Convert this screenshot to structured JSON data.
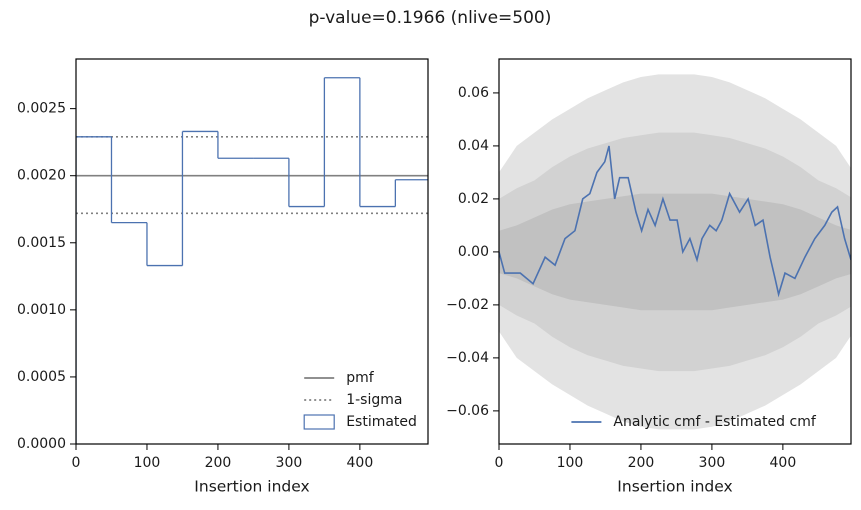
{
  "suptitle": "p-value=0.1966 (nlive=500)",
  "chart_data": [
    {
      "type": "histogram",
      "xlabel": "Insertion index",
      "bins": [
        0,
        50,
        100,
        150,
        200,
        250,
        300,
        350,
        400,
        450,
        500
      ],
      "values": [
        0.00229,
        0.00165,
        0.00133,
        0.00233,
        0.00213,
        0.00213,
        0.00177,
        0.00273,
        0.00177,
        0.00197
      ],
      "name": "Estimated",
      "color": "#4c72b0",
      "reference_lines": [
        {
          "name": "pmf",
          "values": [
            0.002
          ],
          "color": "#808080",
          "dash": "solid"
        },
        {
          "name": "1-sigma",
          "values": [
            0.00172,
            0.00229
          ],
          "color": "#808080",
          "dash": "dotted"
        }
      ],
      "xlim": [
        0,
        496
      ],
      "ylim": [
        0,
        0.00287
      ],
      "xticks": [
        0,
        100,
        200,
        300,
        400
      ],
      "yticks": [
        {
          "value": 0,
          "label": "0.0000"
        },
        {
          "value": 0.0005,
          "label": "0.0005"
        },
        {
          "value": 0.001,
          "label": "0.0010"
        },
        {
          "value": 0.0015,
          "label": "0.0015"
        },
        {
          "value": 0.002,
          "label": "0.0020"
        },
        {
          "value": 0.0025,
          "label": "0.0025"
        }
      ],
      "legend": "lower right"
    },
    {
      "type": "line",
      "xlabel": "Insertion index",
      "x": [
        0,
        8,
        30,
        48,
        65,
        79,
        93,
        107,
        118,
        128,
        138,
        149,
        155,
        163,
        170,
        182,
        193,
        201,
        210,
        220,
        231,
        241,
        251,
        259,
        269,
        279,
        286,
        297,
        306,
        314,
        325,
        339,
        351,
        361,
        372,
        382,
        389,
        394,
        403,
        417,
        431,
        445,
        459,
        469,
        477,
        487,
        496
      ],
      "series": [
        {
          "name": "Analytic cmf - Estimated cmf",
          "color": "#4c72b0",
          "values": [
            0,
            -0.008,
            -0.008,
            -0.012,
            -0.002,
            -0.005,
            0.005,
            0.008,
            0.02,
            0.022,
            0.03,
            0.034,
            0.04,
            0.02,
            0.028,
            0.028,
            0.015,
            0.008,
            0.016,
            0.01,
            0.02,
            0.012,
            0.012,
            0,
            0.005,
            -0.003,
            0.005,
            0.01,
            0.008,
            0.012,
            0.022,
            0.015,
            0.02,
            0.01,
            0.012,
            -0.002,
            -0.01,
            -0.016,
            -0.008,
            -0.01,
            -0.002,
            0.005,
            0.01,
            0.015,
            0.017,
            0.005,
            -0.003
          ]
        }
      ],
      "bands": {
        "x": [
          0,
          25,
          50,
          75,
          100,
          125,
          150,
          175,
          200,
          225,
          250,
          275,
          300,
          325,
          350,
          375,
          400,
          425,
          450,
          475,
          500
        ],
        "levels": [
          {
            "color": "#e3e3e3",
            "upper": [
              0.03,
              0.04,
              0.045,
              0.05,
              0.054,
              0.058,
              0.061,
              0.064,
              0.066,
              0.067,
              0.067,
              0.067,
              0.066,
              0.064,
              0.061,
              0.058,
              0.054,
              0.05,
              0.045,
              0.04,
              0.03
            ],
            "lower": [
              -0.03,
              -0.04,
              -0.045,
              -0.05,
              -0.054,
              -0.058,
              -0.061,
              -0.064,
              -0.066,
              -0.067,
              -0.067,
              -0.067,
              -0.066,
              -0.064,
              -0.061,
              -0.058,
              -0.054,
              -0.05,
              -0.045,
              -0.04,
              -0.03
            ]
          },
          {
            "color": "#d2d2d2",
            "upper": [
              0.02,
              0.024,
              0.027,
              0.032,
              0.036,
              0.039,
              0.041,
              0.043,
              0.044,
              0.045,
              0.045,
              0.045,
              0.044,
              0.043,
              0.041,
              0.039,
              0.036,
              0.032,
              0.027,
              0.024,
              0.02
            ],
            "lower": [
              -0.02,
              -0.024,
              -0.027,
              -0.032,
              -0.036,
              -0.039,
              -0.041,
              -0.043,
              -0.044,
              -0.045,
              -0.045,
              -0.045,
              -0.044,
              -0.043,
              -0.041,
              -0.039,
              -0.036,
              -0.032,
              -0.027,
              -0.024,
              -0.02
            ]
          },
          {
            "color": "#c1c1c1",
            "upper": [
              0.008,
              0.01,
              0.013,
              0.016,
              0.018,
              0.019,
              0.02,
              0.021,
              0.022,
              0.022,
              0.022,
              0.022,
              0.022,
              0.021,
              0.02,
              0.019,
              0.018,
              0.016,
              0.013,
              0.01,
              0.008
            ],
            "lower": [
              -0.008,
              -0.01,
              -0.013,
              -0.016,
              -0.018,
              -0.019,
              -0.02,
              -0.021,
              -0.022,
              -0.022,
              -0.022,
              -0.022,
              -0.022,
              -0.021,
              -0.02,
              -0.019,
              -0.018,
              -0.016,
              -0.013,
              -0.01,
              -0.008
            ]
          }
        ]
      },
      "xlim": [
        0,
        496
      ],
      "ylim": [
        -0.0725,
        0.0728
      ],
      "xticks": [
        0,
        100,
        200,
        300,
        400
      ],
      "yticks": [
        {
          "value": -0.06,
          "label": "−0.06"
        },
        {
          "value": -0.04,
          "label": "−0.04"
        },
        {
          "value": -0.02,
          "label": "−0.02"
        },
        {
          "value": 0,
          "label": "0.00"
        },
        {
          "value": 0.02,
          "label": "0.02"
        },
        {
          "value": 0.04,
          "label": "0.04"
        },
        {
          "value": 0.06,
          "label": "0.06"
        }
      ],
      "legend": "lower right"
    }
  ]
}
